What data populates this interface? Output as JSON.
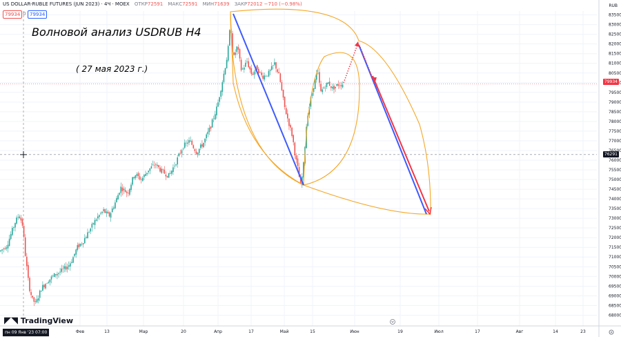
{
  "header": {
    "symbol": "US DOLLAR-RUBLE FUTURES (JUN 2023) · 4Ч · MOEX",
    "open_label": "ОТКР",
    "open": "72591",
    "high_label": "МАКС",
    "high": "72591",
    "low_label": "МИН",
    "low": "71639",
    "close_label": "ЗАКР",
    "close": "72012",
    "change": "−710 (−0.98%)",
    "bid": "79934",
    "spread": "0",
    "ask": "79934"
  },
  "annotation": {
    "title": "Волновой анализ USDRUB H4",
    "date": "( 27 мая 2023 г.)"
  },
  "logo": "TradingView",
  "currency": "RUB",
  "crosshair": {
    "price_label": "76291",
    "time_label": "пн 09 Янв '23   07:00"
  },
  "last_price_label": "79934",
  "colors": {
    "up": "#26a69a",
    "down": "#ef5350",
    "wave": "#f5a623",
    "blue": "#3d5afe",
    "red": "#f23645",
    "grid": "#f0f3fa"
  },
  "chart_data": {
    "type": "candlestick",
    "title": "US DOLLAR-RUBLE FUTURES (JUN 2023) · 4Ч · MOEX",
    "y_ticks": [
      68000,
      68500,
      69000,
      69500,
      70000,
      70500,
      71000,
      71500,
      72000,
      72500,
      73000,
      73500,
      74000,
      74500,
      75000,
      75500,
      76000,
      76500,
      77000,
      77500,
      78000,
      78500,
      79000,
      79500,
      80000,
      80500,
      81000,
      81500,
      82000,
      82500,
      83000,
      83500
    ],
    "ylim": [
      67800,
      83700
    ],
    "x_ticks": [
      {
        "label": "Фев",
        "x": 116
      },
      {
        "label": "13",
        "x": 155
      },
      {
        "label": "Мар",
        "x": 208
      },
      {
        "label": "20",
        "x": 266
      },
      {
        "label": "Апр",
        "x": 316
      },
      {
        "label": "17",
        "x": 364
      },
      {
        "label": "Май",
        "x": 412
      },
      {
        "label": "15",
        "x": 453
      },
      {
        "label": "Июн",
        "x": 514
      },
      {
        "label": "19",
        "x": 580
      },
      {
        "label": "Июл",
        "x": 636
      },
      {
        "label": "17",
        "x": 692
      },
      {
        "label": "Авг",
        "x": 753
      },
      {
        "label": "14",
        "x": 805
      },
      {
        "label": "23",
        "x": 845
      }
    ],
    "price_path": [
      [
        0,
        71300
      ],
      [
        10,
        71600
      ],
      [
        22,
        72800
      ],
      [
        28,
        73200
      ],
      [
        33,
        72600
      ],
      [
        37,
        71000
      ],
      [
        42,
        69500
      ],
      [
        47,
        68800
      ],
      [
        52,
        68600
      ],
      [
        60,
        69400
      ],
      [
        70,
        69800
      ],
      [
        80,
        70100
      ],
      [
        90,
        70300
      ],
      [
        100,
        70600
      ],
      [
        105,
        70900
      ],
      [
        112,
        71500
      ],
      [
        120,
        71800
      ],
      [
        130,
        72400
      ],
      [
        140,
        73000
      ],
      [
        150,
        73400
      ],
      [
        158,
        73100
      ],
      [
        168,
        73900
      ],
      [
        175,
        74600
      ],
      [
        185,
        74300
      ],
      [
        195,
        75300
      ],
      [
        205,
        75000
      ],
      [
        215,
        75500
      ],
      [
        225,
        75800
      ],
      [
        235,
        75400
      ],
      [
        245,
        75200
      ],
      [
        255,
        75900
      ],
      [
        265,
        76700
      ],
      [
        275,
        77000
      ],
      [
        285,
        76400
      ],
      [
        295,
        76900
      ],
      [
        305,
        77700
      ],
      [
        315,
        78800
      ],
      [
        323,
        80200
      ],
      [
        330,
        81500
      ],
      [
        334,
        83100
      ],
      [
        338,
        81200
      ],
      [
        344,
        81900
      ],
      [
        350,
        80600
      ],
      [
        358,
        81100
      ],
      [
        365,
        80400
      ],
      [
        372,
        80800
      ],
      [
        380,
        80300
      ],
      [
        390,
        80500
      ],
      [
        398,
        81000
      ],
      [
        405,
        80300
      ],
      [
        412,
        78800
      ],
      [
        418,
        78000
      ],
      [
        424,
        77200
      ],
      [
        428,
        76200
      ],
      [
        432,
        75500
      ],
      [
        436,
        74600
      ],
      [
        440,
        75800
      ],
      [
        445,
        78200
      ],
      [
        450,
        79100
      ],
      [
        455,
        79900
      ],
      [
        460,
        80600
      ],
      [
        465,
        79500
      ],
      [
        470,
        79800
      ],
      [
        476,
        80000
      ],
      [
        482,
        79700
      ],
      [
        490,
        79900
      ],
      [
        498,
        79934
      ]
    ],
    "waves": {
      "ellipse_top": [
        [
          334,
          17
        ],
        [
          430,
          15
        ],
        [
          520,
          59
        ]
      ],
      "blue_impulse": [
        [
          338,
          20
        ],
        [
          440,
          268
        ]
      ],
      "projection_blue": [
        [
          520,
          65
        ],
        [
          618,
          310
        ]
      ],
      "projection_red": [
        [
          540,
          110
        ],
        [
          622,
          306
        ]
      ],
      "dotted_up": [
        [
          498,
          120
        ],
        [
          518,
          65
        ]
      ],
      "dotted_down": [
        [
          522,
          68
        ],
        [
          542,
          118
        ]
      ],
      "target": [
        622,
        309
      ]
    }
  }
}
